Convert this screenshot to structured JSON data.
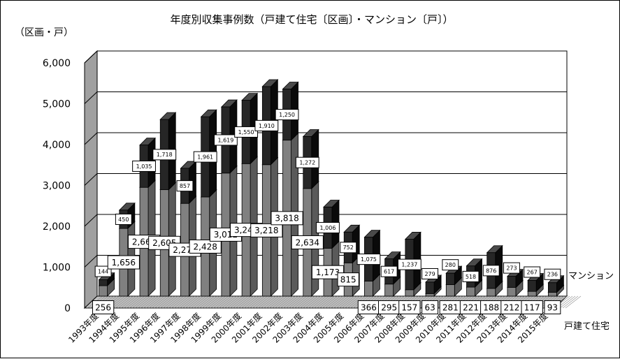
{
  "chart_data": {
    "type": "bar",
    "title": "年度別収集事例数（戸建て住宅〔区画〕・マンション〔戸〕）",
    "ylabel": "（区画・戸）",
    "ylim": [
      0,
      6000
    ],
    "yticks": [
      "0",
      "1,000",
      "2,000",
      "3,000",
      "4,000",
      "5,000",
      "6,000"
    ],
    "categories": [
      "1993年度",
      "1994年度",
      "1995年度",
      "1996年度",
      "1997年度",
      "1998年度",
      "1999年度",
      "2000年度",
      "2001年度",
      "2002年度",
      "2003年度",
      "2004年度",
      "2005年度",
      "2006年度",
      "2007年度",
      "2008年度",
      "2009年度",
      "2010年度",
      "2011年度",
      "2012年度",
      "2013年度",
      "2014年度",
      "2015年度"
    ],
    "series": [
      {
        "name": "戸建て住宅",
        "values": [
          256,
          1656,
          2663,
          2605,
          2270,
          2428,
          3012,
          3243,
          3218,
          3818,
          2634,
          1173,
          815,
          366,
          295,
          157,
          63,
          281,
          221,
          188,
          212,
          117,
          93
        ],
        "labels": [
          "256",
          "1,656",
          "2,663",
          "2,605",
          "2,270",
          "2,428",
          "3,012",
          "3,243",
          "3,218",
          "3,818",
          "2,634",
          "1,173",
          "815",
          "366",
          "295",
          "157",
          "63",
          "281",
          "221",
          "188",
          "212",
          "117",
          "93"
        ]
      },
      {
        "name": "マンション",
        "values": [
          144,
          450,
          1035,
          1718,
          857,
          1961,
          1619,
          1550,
          1910,
          1250,
          1272,
          1006,
          752,
          1075,
          617,
          1237,
          279,
          280,
          518,
          876,
          273,
          267,
          236
        ],
        "labels": [
          "144",
          "450",
          "1,035",
          "1,718",
          "857",
          "1,961",
          "1,619",
          "1,550",
          "1,910",
          "1,250",
          "1,272",
          "1,006",
          "752",
          "1,075",
          "617",
          "1,237",
          "279",
          "280",
          "518",
          "876",
          "273",
          "267",
          "236"
        ]
      }
    ],
    "grid": true,
    "colors": {
      "house_front": "#808080",
      "house_side": "#5a5a5a",
      "house_top": "#b4b4b4",
      "mansion_front": "#262626",
      "mansion_side": "#0a0a0a",
      "mansion_top": "#4a4a4a",
      "wall": "#ffffff",
      "floor": "#c0c0c0",
      "wall_left": "#a0a0a0"
    }
  }
}
